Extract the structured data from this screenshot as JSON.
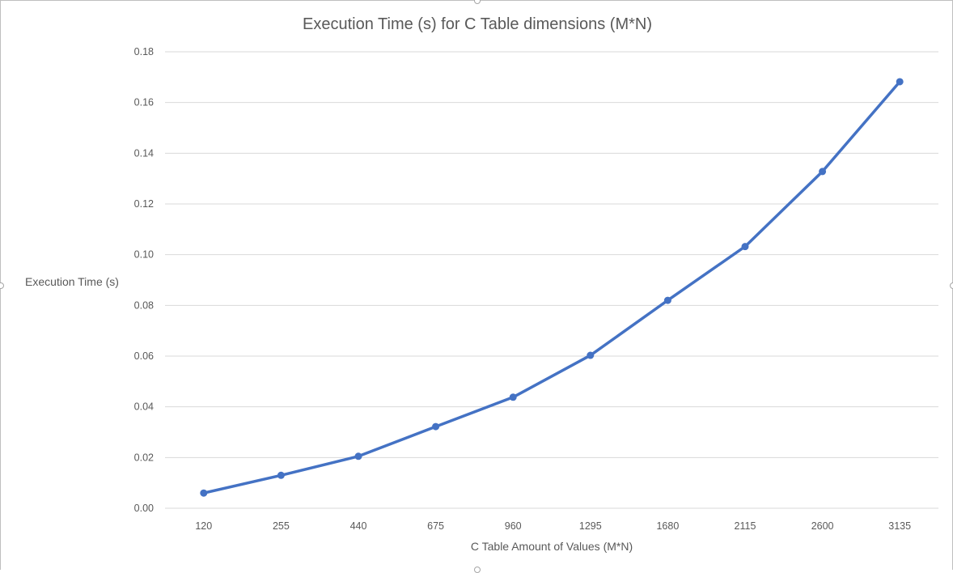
{
  "chart_data": {
    "type": "line",
    "title": "Execution Time (s) for C Table dimensions (M*N)",
    "xlabel": "C Table Amount of Values (M*N)",
    "ylabel": "Execution Time (s)",
    "categories": [
      "120",
      "255",
      "440",
      "675",
      "960",
      "1295",
      "1680",
      "2115",
      "2600",
      "3135"
    ],
    "series": [
      {
        "values": [
          0.006,
          0.013,
          0.0205,
          0.0322,
          0.0438,
          0.0603,
          0.082,
          0.1032,
          0.1328,
          0.1682
        ]
      }
    ],
    "ylim": [
      0,
      0.18
    ],
    "yticks": [
      "0.00",
      "0.02",
      "0.04",
      "0.06",
      "0.08",
      "0.10",
      "0.12",
      "0.14",
      "0.16",
      "0.18"
    ],
    "grid": true,
    "legend": "none",
    "colors": {
      "line": "#4472c4",
      "grid": "#d9d9d9",
      "text": "#595959"
    }
  }
}
